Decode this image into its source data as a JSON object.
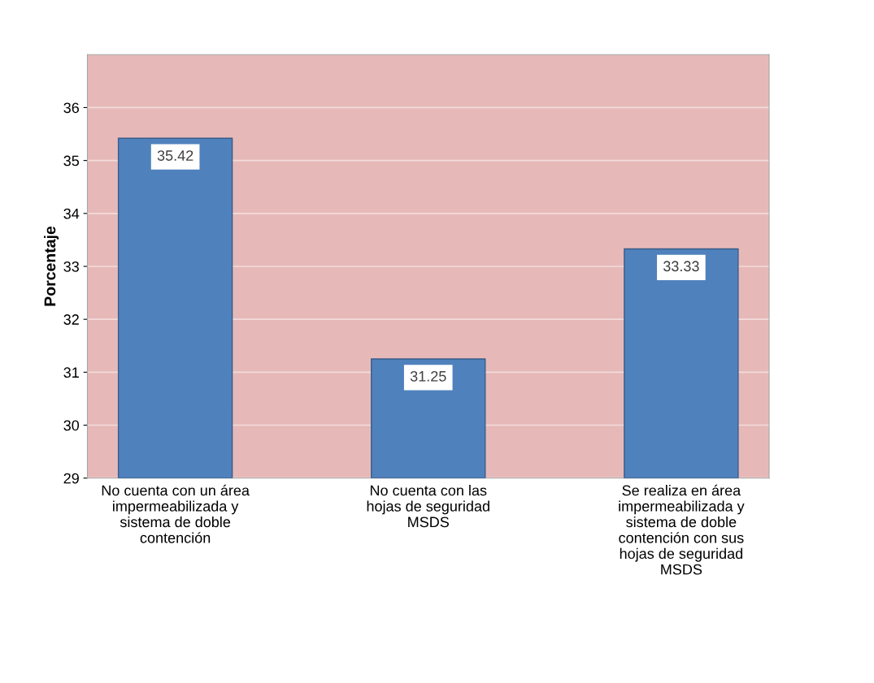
{
  "chart_data": {
    "type": "bar",
    "ylabel": "Porcentaje",
    "categories": [
      "No cuenta con un área\nimpermeabilizada y\nsistema de doble\ncontención",
      "No cuenta con las\nhojas de seguridad\nMSDS",
      "Se realiza en área\nimpermeabilizada y\nsistema de doble\ncontención con sus\nhojas de seguridad\nMSDS"
    ],
    "values": [
      35.42,
      31.25,
      33.33
    ],
    "color": "#4f81bd",
    "ylim": [
      29,
      37
    ],
    "yticks": [
      29,
      30,
      31,
      32,
      33,
      34,
      35,
      36
    ],
    "grid": "y",
    "data_labels": true
  }
}
